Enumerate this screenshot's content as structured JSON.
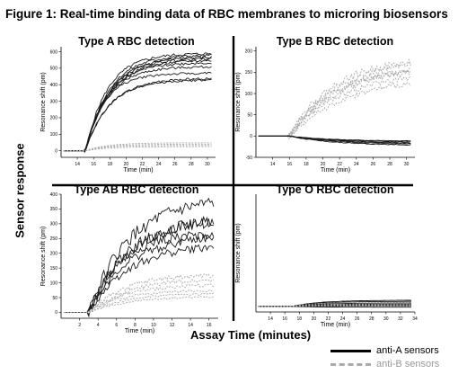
{
  "figure": {
    "title": "Figure 1: Real-time binding data of RBC membranes to microring biosensors",
    "ylabel": "Sensor response",
    "xlabel": "Assay Time (minutes)",
    "legend": [
      {
        "label": "anti-A sensors",
        "style": "solid",
        "color": "#000000"
      },
      {
        "label": "anti-B sensors",
        "style": "dashed",
        "color": "#aaaaaa"
      }
    ]
  },
  "colors": {
    "antiA": "#1a1a1a",
    "antiB": "#a8a8a8"
  },
  "chart_data": [
    {
      "type": "line",
      "title": "Type A RBC detection",
      "xlabel": "Time (min)",
      "ylabel": "Resonance shift (pm)",
      "xlim": [
        12,
        31
      ],
      "ylim": [
        -40,
        630
      ],
      "xticks": [
        14,
        16,
        18,
        20,
        22,
        24,
        26,
        28,
        30
      ],
      "yticks": [
        0,
        100,
        200,
        300,
        400,
        500,
        600
      ],
      "onset": 15,
      "tau": 2.8,
      "series": [
        {
          "name": "anti-A sensors",
          "values": [
            590,
            580,
            570,
            560,
            550,
            535,
            510,
            470,
            440,
            430
          ]
        },
        {
          "name": "anti-B sensors",
          "values": [
            48,
            40,
            32,
            25
          ]
        }
      ]
    },
    {
      "type": "line",
      "title": "Type B RBC detection",
      "xlabel": "Time (min)",
      "ylabel": "Resonance shift (pm)",
      "xlim": [
        12,
        31
      ],
      "ylim": [
        -50,
        210
      ],
      "xticks": [
        14,
        16,
        18,
        20,
        22,
        24,
        26,
        28,
        30
      ],
      "yticks": [
        -50,
        0,
        50,
        100,
        150,
        200
      ],
      "onset": 16,
      "tau": 6,
      "series": [
        {
          "name": "anti-B sensors",
          "values": [
            185,
            178,
            170,
            165,
            160,
            150,
            140
          ]
        },
        {
          "name": "anti-A sensors",
          "values": [
            -12,
            -15,
            -18,
            -20,
            -22
          ]
        }
      ]
    },
    {
      "type": "line",
      "title": "Type AB RBC detection",
      "xlabel": "Time (min)",
      "ylabel": "Resonance shift (pm)",
      "xlim": [
        0,
        17
      ],
      "ylim": [
        -20,
        400
      ],
      "xticks": [
        2,
        4,
        6,
        8,
        10,
        12,
        14,
        16
      ],
      "yticks": [
        0,
        50,
        100,
        150,
        200,
        250,
        300,
        350,
        400
      ],
      "onset": 3,
      "tau": 4,
      "series": [
        {
          "name": "anti-A sensors",
          "values": [
            385,
            325,
            315,
            270,
            260,
            230
          ]
        },
        {
          "name": "anti-B sensors",
          "values": [
            130,
            115,
            95,
            75,
            65,
            55
          ]
        }
      ]
    },
    {
      "type": "line",
      "title": "Type O RBC detection",
      "xlabel": "Time (min)",
      "ylabel": "Resonance shift (pm)",
      "xlim": [
        12,
        34
      ],
      "ylim": [
        -20,
        400
      ],
      "xticks": [
        14,
        16,
        18,
        20,
        22,
        24,
        26,
        28,
        30,
        32,
        34
      ],
      "yticks": [],
      "onset": 17,
      "tau": 4,
      "series": [
        {
          "name": "anti-A sensors",
          "values": [
            22,
            18,
            12,
            8,
            5,
            2,
            -3
          ]
        },
        {
          "name": "anti-B sensors",
          "values": [
            15,
            10,
            6,
            3
          ]
        }
      ]
    }
  ]
}
